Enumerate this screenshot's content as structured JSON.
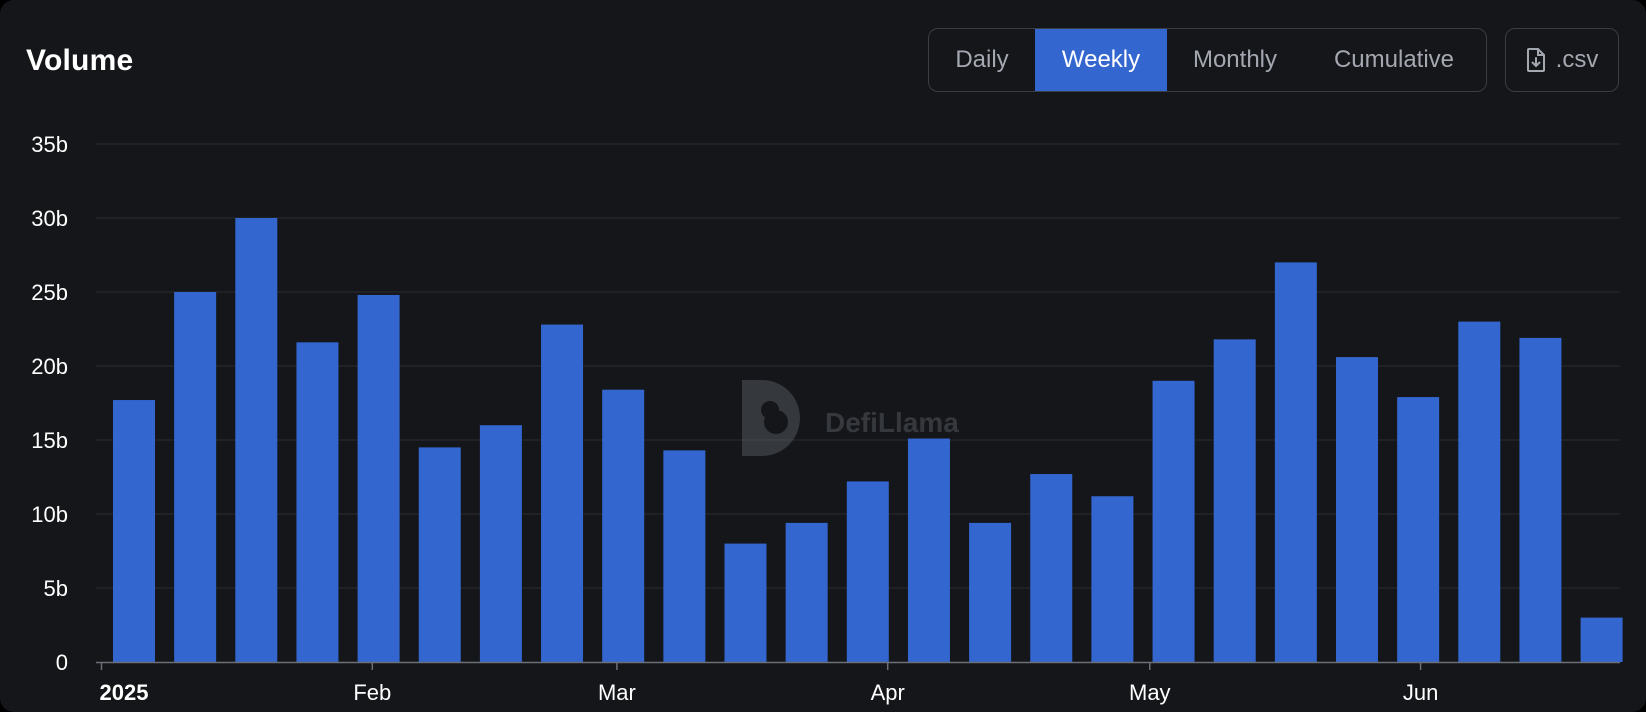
{
  "header": {
    "title": "Volume"
  },
  "tabs": [
    {
      "label": "Daily",
      "active": false
    },
    {
      "label": "Weekly",
      "active": true
    },
    {
      "label": "Monthly",
      "active": false
    },
    {
      "label": "Cumulative",
      "active": false
    }
  ],
  "csv_button": {
    "label": ".csv",
    "icon": "file-download-icon"
  },
  "watermark": {
    "text": "DefiLlama"
  },
  "colors": {
    "bar": "#3466d0",
    "background": "#151619",
    "accent": "#3466d0"
  },
  "chart_data": {
    "type": "bar",
    "title": "Volume",
    "xlabel": "",
    "ylabel": "",
    "ylim": [
      0,
      35
    ],
    "y_unit": "b",
    "y_ticks": [
      "0",
      "5b",
      "10b",
      "15b",
      "20b",
      "25b",
      "30b",
      "35b"
    ],
    "x_ticks": [
      "2025",
      "Feb",
      "Mar",
      "Apr",
      "May",
      "Jun"
    ],
    "grid": true,
    "series": [
      {
        "values": [
          17.7,
          25.0,
          30.0,
          21.6,
          24.8,
          14.5,
          16.0,
          22.8,
          18.4,
          14.3,
          8.0,
          9.4,
          12.2,
          15.1,
          9.4,
          12.7,
          11.2,
          19.0,
          21.8,
          27.0,
          20.6,
          17.9,
          23.0,
          21.9,
          3.0
        ]
      }
    ]
  }
}
